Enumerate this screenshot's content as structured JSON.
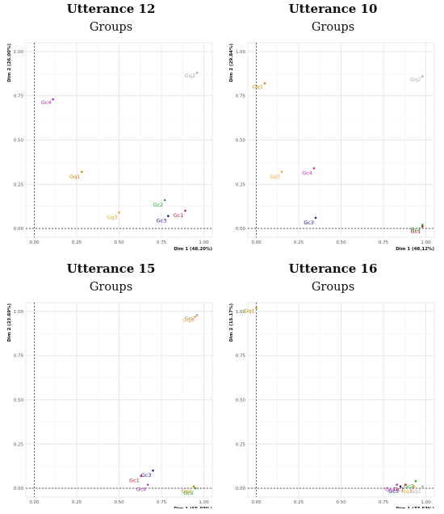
{
  "colors": {
    "Gq1": "#D08A00",
    "Gq2": "#A9A9A9",
    "Gq3": "#E8A533",
    "Gc1": "#C0212C",
    "Gc2": "#2BA52B",
    "Gc3": "#1A1A9E",
    "Gc4": "#C02AC0"
  },
  "chart_data": [
    {
      "type": "scatter",
      "title": "Utterance 12",
      "subtitle": "Groups",
      "xlabel": "Dim 1 (48.20%)",
      "ylabel": "Dim 2 (26.00%)",
      "xlim": [
        -0.05,
        1.05
      ],
      "ylim": [
        -0.05,
        1.05
      ],
      "xticks": [
        "0.00",
        "0.25",
        "0.50",
        "0.75",
        "1.00"
      ],
      "yticks": [
        "0.00",
        "0.25",
        "0.50",
        "0.75",
        "1.00"
      ],
      "grid": true,
      "points": [
        {
          "label": "Gq2",
          "x": 0.96,
          "y": 0.88
        },
        {
          "label": "Gc4",
          "x": 0.11,
          "y": 0.73
        },
        {
          "label": "Gq1",
          "x": 0.28,
          "y": 0.32
        },
        {
          "label": "Gc2",
          "x": 0.77,
          "y": 0.16
        },
        {
          "label": "Gc1",
          "x": 0.89,
          "y": 0.1
        },
        {
          "label": "Gq3",
          "x": 0.5,
          "y": 0.09
        },
        {
          "label": "Gc3",
          "x": 0.79,
          "y": 0.07
        }
      ]
    },
    {
      "type": "scatter",
      "title": "Utterance 10",
      "subtitle": "Groups",
      "xlabel": "Dim 1 (48.12%)",
      "ylabel": "Dim 2 (29.84%)",
      "xlim": [
        -0.05,
        1.05
      ],
      "ylim": [
        -0.05,
        1.05
      ],
      "xticks": [
        "0.00",
        "0.25",
        "0.50",
        "0.75",
        "1.00"
      ],
      "yticks": [
        "0.00",
        "0.25",
        "0.50",
        "0.75",
        "1.00"
      ],
      "grid": true,
      "points": [
        {
          "label": "Gq2",
          "x": 0.98,
          "y": 0.86
        },
        {
          "label": "Gq1",
          "x": 0.05,
          "y": 0.82
        },
        {
          "label": "Gc4",
          "x": 0.34,
          "y": 0.34
        },
        {
          "label": "Gq3",
          "x": 0.15,
          "y": 0.32
        },
        {
          "label": "Gc3",
          "x": 0.35,
          "y": 0.06
        },
        {
          "label": "Gc2",
          "x": 0.98,
          "y": 0.02
        },
        {
          "label": "Gc1",
          "x": 0.98,
          "y": 0.01
        }
      ]
    },
    {
      "type": "scatter",
      "title": "Utterance 15",
      "subtitle": "Groups",
      "xlabel": "Dim 1 (65.03%)",
      "ylabel": "Dim 2 (23.69%)",
      "xlim": [
        -0.05,
        1.05
      ],
      "ylim": [
        -0.05,
        1.05
      ],
      "xticks": [
        "0.00",
        "0.25",
        "0.50",
        "0.75",
        "1.00"
      ],
      "yticks": [
        "0.00",
        "0.25",
        "0.50",
        "0.75",
        "1.00"
      ],
      "grid": true,
      "points": [
        {
          "label": "Gq2",
          "x": 0.96,
          "y": 0.98
        },
        {
          "label": "Gq3",
          "x": 0.95,
          "y": 0.97
        },
        {
          "label": "Gc3",
          "x": 0.7,
          "y": 0.1
        },
        {
          "label": "Gc1",
          "x": 0.63,
          "y": 0.07
        },
        {
          "label": "Gq1",
          "x": 0.94,
          "y": 0.01
        },
        {
          "label": "Gc4",
          "x": 0.67,
          "y": 0.02
        },
        {
          "label": "Gc2",
          "x": 0.95,
          "y": 0.0
        }
      ]
    },
    {
      "type": "scatter",
      "title": "Utterance 16",
      "subtitle": "Groups",
      "xlabel": "Dim 1 (77.57%)",
      "ylabel": "Dim 2 (15.17%)",
      "xlim": [
        -0.05,
        1.05
      ],
      "ylim": [
        -0.05,
        1.05
      ],
      "xticks": [
        "0.00",
        "0.25",
        "0.50",
        "0.75",
        "1.00"
      ],
      "yticks": [
        "0.00",
        "0.25",
        "0.50",
        "0.75",
        "1.00"
      ],
      "grid": true,
      "points": [
        {
          "label": "Gq1",
          "x": 0.0,
          "y": 1.02
        },
        {
          "label": "Gc2",
          "x": 0.94,
          "y": 0.04
        },
        {
          "label": "Gc1",
          "x": 0.88,
          "y": 0.02
        },
        {
          "label": "Gc4",
          "x": 0.83,
          "y": 0.02
        },
        {
          "label": "Gq2",
          "x": 0.98,
          "y": 0.01
        },
        {
          "label": "Gq3",
          "x": 0.93,
          "y": 0.01
        },
        {
          "label": "Gc3",
          "x": 0.85,
          "y": 0.01
        }
      ]
    }
  ]
}
